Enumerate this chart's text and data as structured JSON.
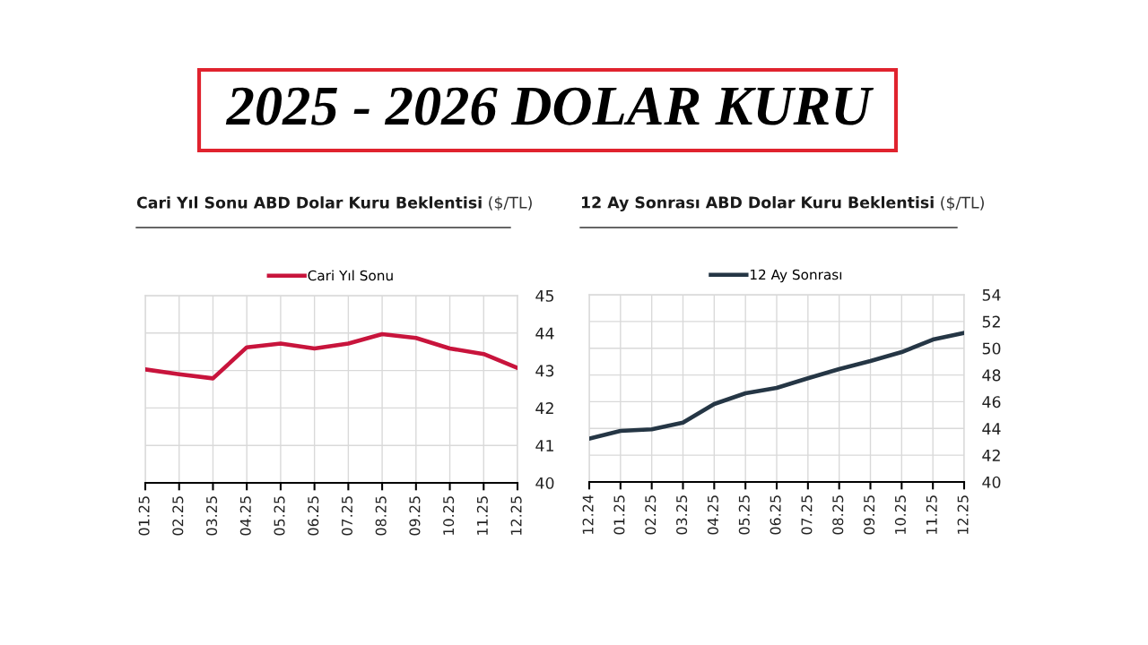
{
  "chart_data": [
    {
      "type": "other",
      "title": "2025 - 2026 DOLAR KURU"
    },
    {
      "type": "line",
      "title": "Cari Yıl Sonu ABD Dolar Kuru Beklentisi",
      "subtitle": "($/TL)",
      "categories": [
        "01.25",
        "02.25",
        "03.25",
        "04.25",
        "05.25",
        "06.25",
        "07.25",
        "08.25",
        "09.25",
        "10.25",
        "11.25",
        "12.25"
      ],
      "series": [
        {
          "name": "Cari Yıl Sonu",
          "color": "#c8143c",
          "values": [
            43.03,
            42.9,
            42.79,
            43.62,
            43.72,
            43.59,
            43.72,
            43.97,
            43.87,
            43.59,
            43.44,
            43.07
          ]
        }
      ],
      "ylim": [
        40,
        45
      ],
      "yticks": [
        40,
        41,
        42,
        43,
        44,
        45
      ],
      "grid": true,
      "legend": "top"
    },
    {
      "type": "line",
      "title": "12 Ay Sonrası ABD Dolar Kuru Beklentisi",
      "subtitle": "($/TL)",
      "categories": [
        "12.24",
        "01.25",
        "02.25",
        "03.25",
        "04.25",
        "05.25",
        "06.25",
        "07.25",
        "08.25",
        "09.25",
        "10.25",
        "11.25",
        "12.25"
      ],
      "series": [
        {
          "name": "12 Ay Sonrası",
          "color": "#253645",
          "values": [
            43.24,
            43.82,
            43.93,
            44.44,
            45.83,
            46.63,
            47.03,
            47.75,
            48.44,
            49.04,
            49.71,
            50.65,
            51.14
          ]
        }
      ],
      "ylim": [
        40,
        54
      ],
      "yticks": [
        40,
        42,
        44,
        46,
        48,
        50,
        52,
        54
      ],
      "grid": true,
      "legend": "top"
    }
  ]
}
